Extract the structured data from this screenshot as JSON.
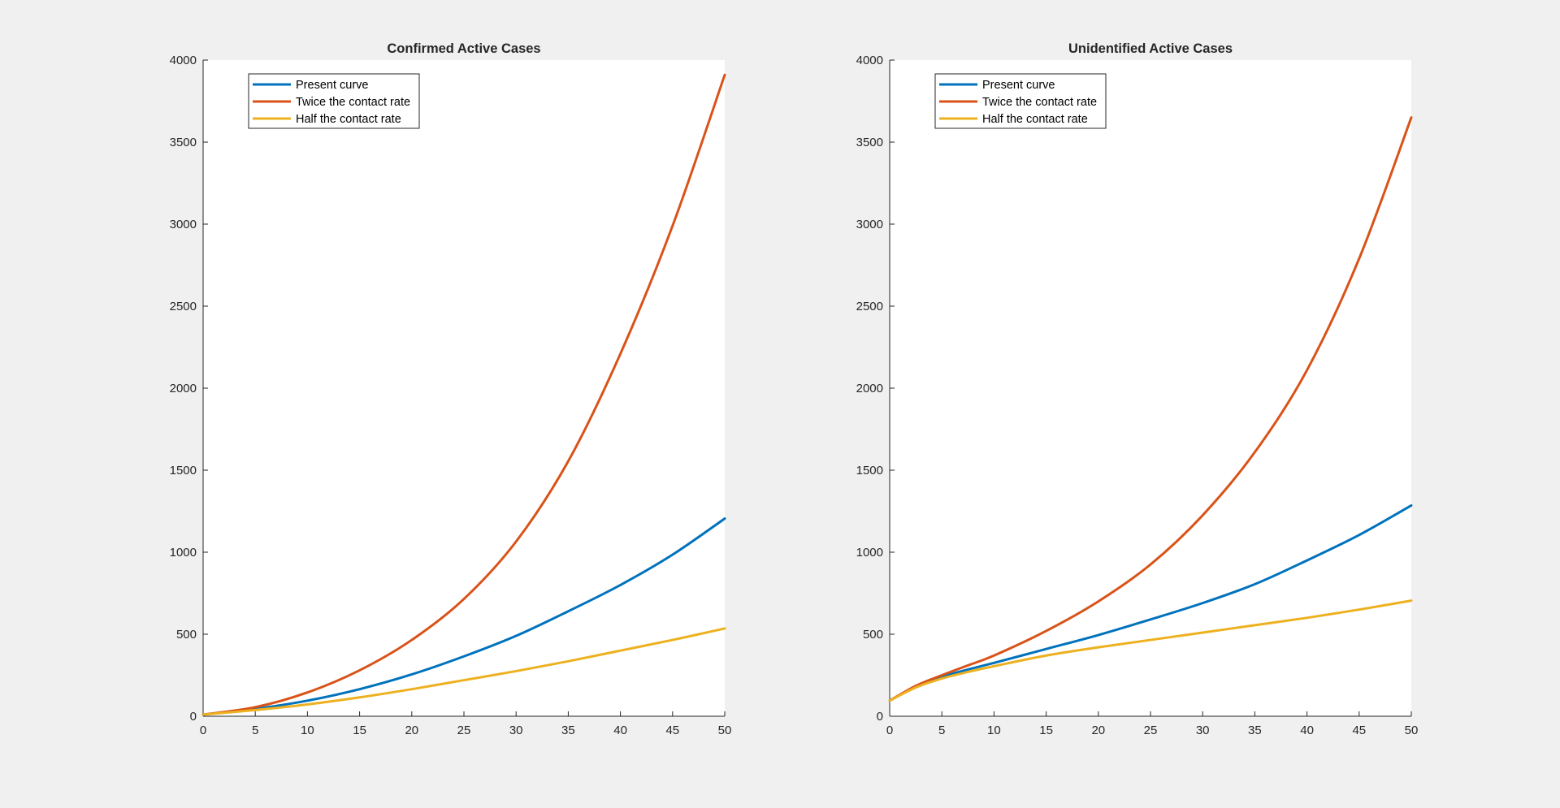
{
  "figure": {
    "background": "#f0f0f0"
  },
  "chart_data": [
    {
      "type": "line",
      "title": "Confirmed Active Cases",
      "xlabel": "",
      "ylabel": "",
      "xlim": [
        0,
        50
      ],
      "ylim": [
        0,
        4000
      ],
      "xticks": [
        0,
        5,
        10,
        15,
        20,
        25,
        30,
        35,
        40,
        45,
        50
      ],
      "yticks": [
        0,
        500,
        1000,
        1500,
        2000,
        2500,
        3000,
        3500,
        4000
      ],
      "grid": false,
      "legend_location": "top-left",
      "x": [
        0,
        5,
        10,
        15,
        20,
        25,
        30,
        35,
        40,
        45,
        50
      ],
      "series": [
        {
          "name": "Present curve",
          "color": "#0072bd",
          "values": [
            10,
            45,
            95,
            165,
            255,
            365,
            490,
            640,
            800,
            985,
            1205
          ]
        },
        {
          "name": "Twice the contact rate",
          "color": "#d95319",
          "values": [
            10,
            55,
            145,
            280,
            465,
            715,
            1065,
            1555,
            2210,
            2990,
            3910
          ]
        },
        {
          "name": "Half the contact rate",
          "color": "#edb120",
          "values": [
            10,
            38,
            72,
            115,
            165,
            220,
            275,
            335,
            400,
            465,
            535
          ]
        }
      ]
    },
    {
      "type": "line",
      "title": "Unidentified Active Cases",
      "xlabel": "",
      "ylabel": "",
      "xlim": [
        0,
        50
      ],
      "ylim": [
        0,
        4000
      ],
      "xticks": [
        0,
        5,
        10,
        15,
        20,
        25,
        30,
        35,
        40,
        45,
        50
      ],
      "yticks": [
        0,
        500,
        1000,
        1500,
        2000,
        2500,
        3000,
        3500,
        4000
      ],
      "grid": false,
      "legend_location": "top-left",
      "x": [
        0,
        2.5,
        5,
        7.5,
        10,
        15,
        20,
        25,
        30,
        35,
        40,
        45,
        50
      ],
      "series": [
        {
          "name": "Present curve",
          "color": "#0072bd",
          "values": [
            95,
            180,
            240,
            285,
            325,
            410,
            495,
            590,
            690,
            805,
            950,
            1105,
            1285
          ]
        },
        {
          "name": "Twice the contact rate",
          "color": "#d95319",
          "values": [
            95,
            185,
            250,
            310,
            370,
            520,
            700,
            925,
            1225,
            1610,
            2110,
            2790,
            3650
          ]
        },
        {
          "name": "Half the contact rate",
          "color": "#edb120",
          "values": [
            95,
            175,
            230,
            270,
            305,
            370,
            420,
            465,
            510,
            555,
            600,
            650,
            705
          ]
        }
      ]
    }
  ]
}
